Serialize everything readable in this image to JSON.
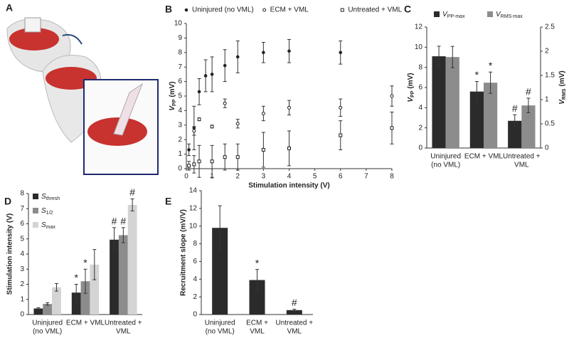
{
  "illustration": {
    "panel": "A"
  },
  "chart_data": [
    {
      "type": "scatter",
      "panel": "B",
      "xlabel": "Stimulation intensity (V)",
      "ylabel": {
        "symbol": "V",
        "subscript": "PP",
        "unit": "(mV)"
      },
      "xlim": [
        0,
        8
      ],
      "xticks": [
        0,
        1,
        2,
        3,
        4,
        5,
        6,
        7,
        8
      ],
      "ylim": [
        0,
        10
      ],
      "yticks": [
        0,
        1,
        2,
        3,
        4,
        5,
        6,
        7,
        8,
        9,
        10
      ],
      "legend": "top",
      "series": [
        {
          "name": "Uninjured (no VML)",
          "marker": "dot",
          "color": "#222",
          "x": [
            0.1,
            0.3,
            0.5,
            0.75,
            1,
            1.5,
            2,
            3,
            4,
            6
          ],
          "values": [
            1.3,
            2.8,
            5.3,
            6.4,
            6.5,
            7.1,
            7.7,
            8.0,
            8.1,
            8.0
          ],
          "errors": [
            0.4,
            1.5,
            0.9,
            1.1,
            1.2,
            1.1,
            1.1,
            0.7,
            0.8,
            0.8
          ]
        },
        {
          "name": "ECM + VML",
          "marker": "circle",
          "color": "#222",
          "x": [
            0.3,
            0.5,
            1,
            1.5,
            2,
            3,
            4,
            6,
            8
          ],
          "values": [
            2.6,
            3.4,
            2.9,
            4.5,
            3.1,
            3.8,
            4.2,
            4.2,
            5.0
          ],
          "errors": [
            0.3,
            0.1,
            0.1,
            0.3,
            0.3,
            0.5,
            0.5,
            0.6,
            0.7
          ]
        },
        {
          "name": "Untreated + VML",
          "marker": "square",
          "color": "#222",
          "x": [
            0.1,
            0.3,
            0.5,
            1,
            1.5,
            2,
            3,
            4,
            6,
            8
          ],
          "values": [
            0.2,
            0.3,
            0.5,
            0.5,
            0.8,
            0.8,
            1.3,
            1.4,
            2.3,
            2.8
          ],
          "errors": [
            0.3,
            0.6,
            1.1,
            1.1,
            0.9,
            0.9,
            1.2,
            1.2,
            1.0,
            1.1
          ]
        }
      ]
    },
    {
      "type": "bar",
      "panel": "C",
      "categories": [
        [
          "Uninjured",
          "(no VML)"
        ],
        [
          "ECM + VML"
        ],
        [
          "Untreated +",
          "VML"
        ]
      ],
      "ylabel": {
        "symbol": "V",
        "subscript": "PP",
        "unit": "(mV)"
      },
      "y2label": {
        "symbol": "V",
        "subscript": "RMS",
        "unit": "(mV)"
      },
      "ylim": [
        0,
        12
      ],
      "yticks": [
        0,
        2,
        4,
        6,
        8,
        10,
        12
      ],
      "y2lim": [
        0,
        2.5
      ],
      "y2ticks": [
        0,
        0.5,
        1,
        1.5,
        2,
        2.5
      ],
      "legend": "top",
      "series": [
        {
          "name": {
            "symbol": "V",
            "subscript": "PP-max"
          },
          "color": "#2b2b2b",
          "values": [
            9.1,
            5.6,
            2.7
          ],
          "errors": [
            1.0,
            1.0,
            0.6
          ],
          "marks": [
            null,
            "*",
            "#"
          ]
        },
        {
          "name": {
            "symbol": "V",
            "subscript": "RMS-max"
          },
          "color": "#8c8c8c",
          "axis": "y2",
          "values": [
            1.88,
            1.35,
            0.88
          ],
          "errors": [
            0.22,
            0.22,
            0.15
          ],
          "marks": [
            null,
            "*",
            "#"
          ]
        }
      ]
    },
    {
      "type": "bar",
      "panel": "D",
      "categories": [
        [
          "Uninjured",
          "(no VML)"
        ],
        [
          "ECM + VML"
        ],
        [
          "Untreated +",
          "VML"
        ]
      ],
      "ylabel": "Stimulation intensity (V)",
      "ylim": [
        0,
        8
      ],
      "yticks": [
        0,
        1,
        2,
        3,
        4,
        5,
        6,
        7,
        8
      ],
      "legend": "upper left",
      "series": [
        {
          "name": {
            "symbol": "S",
            "subscript": "thresh"
          },
          "color": "#2b2b2b",
          "values": [
            0.4,
            1.45,
            4.95
          ],
          "errors": [
            0.05,
            0.55,
            0.8
          ],
          "marks": [
            null,
            "*",
            "#"
          ]
        },
        {
          "name": {
            "symbol": "S",
            "subscript": "1/2"
          },
          "color": "#8c8c8c",
          "values": [
            0.7,
            2.2,
            5.25
          ],
          "errors": [
            0.08,
            0.8,
            0.5
          ],
          "marks": [
            null,
            "*",
            "#"
          ]
        },
        {
          "name": {
            "symbol": "S",
            "subscript": "max"
          },
          "color": "#d4d4d4",
          "values": [
            1.8,
            3.3,
            7.25
          ],
          "errors": [
            0.25,
            1.0,
            0.4
          ],
          "marks": [
            null,
            null,
            "#"
          ]
        }
      ]
    },
    {
      "type": "bar",
      "panel": "E",
      "categories": [
        [
          "Uninjured",
          "(no VML)"
        ],
        [
          "ECM +",
          "VML"
        ],
        [
          "Untreated +",
          "VML"
        ]
      ],
      "ylabel": "Recruitment slope (mV/V)",
      "ylim": [
        0,
        14
      ],
      "yticks": [
        0,
        2,
        4,
        6,
        8,
        10,
        12,
        14
      ],
      "series": [
        {
          "color": "#2b2b2b",
          "values": [
            9.8,
            3.9,
            0.5
          ],
          "errors": [
            2.5,
            1.2,
            0.1
          ],
          "marks": [
            null,
            "*",
            "#"
          ]
        }
      ]
    }
  ]
}
